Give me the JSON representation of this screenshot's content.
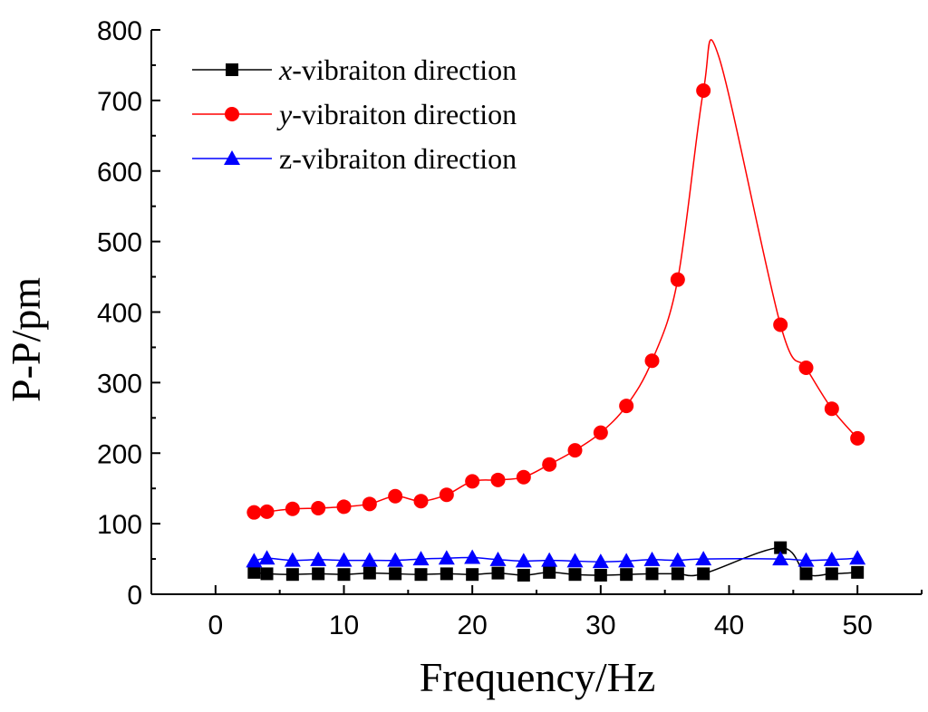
{
  "chart_data": {
    "type": "line",
    "xlabel": "Frequency/Hz",
    "ylabel": "P-P/pm",
    "xlim": [
      -5,
      55
    ],
    "ylim": [
      0,
      800
    ],
    "x_ticks": [
      0,
      10,
      20,
      30,
      40,
      50
    ],
    "y_ticks": [
      0,
      100,
      200,
      300,
      400,
      500,
      600,
      700,
      800
    ],
    "x_tick_labels": [
      "0",
      "10",
      "20",
      "30",
      "40",
      "50"
    ],
    "y_tick_labels": [
      "0",
      "100",
      "200",
      "300",
      "400",
      "500",
      "600",
      "700",
      "800"
    ],
    "grid": false,
    "legend_position": "top-left",
    "series": [
      {
        "name_prefix": "x",
        "name_suffix": "-vibraiton direction",
        "name_italic_prefix": true,
        "color": "#000000",
        "marker": "square",
        "x": [
          3,
          4,
          6,
          8,
          10,
          12,
          14,
          16,
          18,
          20,
          22,
          24,
          26,
          28,
          30,
          32,
          34,
          36,
          38,
          44,
          46,
          48,
          50
        ],
        "y": [
          31,
          29,
          28,
          29,
          28,
          30,
          29,
          28,
          29,
          28,
          30,
          27,
          31,
          28,
          27,
          28,
          29,
          29,
          29,
          66,
          29,
          29,
          31
        ]
      },
      {
        "name_prefix": "y",
        "name_suffix": "-vibraiton direction",
        "name_italic_prefix": true,
        "color": "#ff0000",
        "marker": "circle",
        "x": [
          3,
          4,
          6,
          8,
          10,
          12,
          14,
          16,
          18,
          20,
          22,
          24,
          26,
          28,
          30,
          32,
          34,
          36,
          38,
          44,
          46,
          48,
          50
        ],
        "y": [
          116,
          117,
          121,
          122,
          124,
          128,
          139,
          132,
          141,
          160,
          162,
          166,
          184,
          204,
          229,
          267,
          331,
          446,
          714,
          382,
          321,
          263,
          221
        ],
        "curve_peak": [
          39.2,
          762
        ]
      },
      {
        "name_prefix": "z",
        "name_suffix": "-vibraiton direction",
        "name_italic_prefix": false,
        "color": "#0000ff",
        "marker": "triangle",
        "x": [
          3,
          4,
          6,
          8,
          10,
          12,
          14,
          16,
          18,
          20,
          22,
          24,
          26,
          28,
          30,
          32,
          34,
          36,
          38,
          44,
          46,
          48,
          50
        ],
        "y": [
          47,
          51,
          48,
          49,
          48,
          48,
          48,
          50,
          51,
          52,
          49,
          47,
          48,
          47,
          46,
          47,
          49,
          48,
          50,
          50,
          48,
          49,
          51
        ]
      }
    ]
  }
}
